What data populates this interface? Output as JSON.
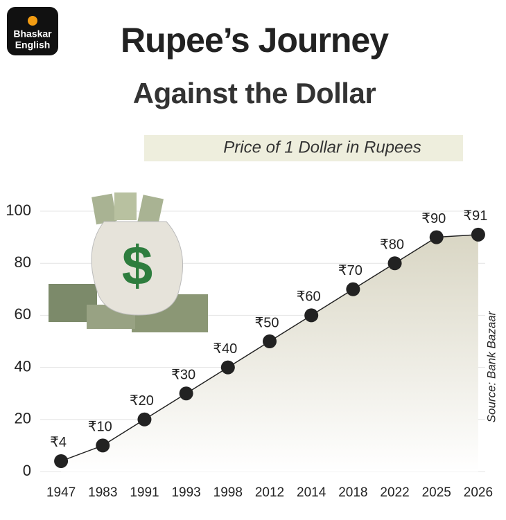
{
  "logo": [
    "Bhaskar",
    "English"
  ],
  "chart_data": {
    "type": "area-line",
    "title": "Rupee’s Journey",
    "title_line_2": "Against the Dollar",
    "subtitle": "Price of 1 Dollar in Rupees",
    "source": "Source: Bank Bazaar",
    "categories": [
      "1947",
      "1983",
      "1991",
      "1993",
      "1998",
      "2012",
      "2014",
      "2018",
      "2022",
      "2025",
      "2026"
    ],
    "values": [
      4,
      10,
      20,
      30,
      40,
      50,
      60,
      70,
      80,
      90,
      91
    ],
    "value_labels": [
      "₹4",
      "₹10",
      "₹20",
      "₹30",
      "₹40",
      "₹50",
      "₹60",
      "₹70",
      "₹80",
      "₹90",
      "₹91"
    ],
    "color": "#222222",
    "ylim": [
      0,
      100
    ],
    "yticks": [
      0,
      20,
      40,
      60,
      80,
      100
    ],
    "grid": true
  }
}
